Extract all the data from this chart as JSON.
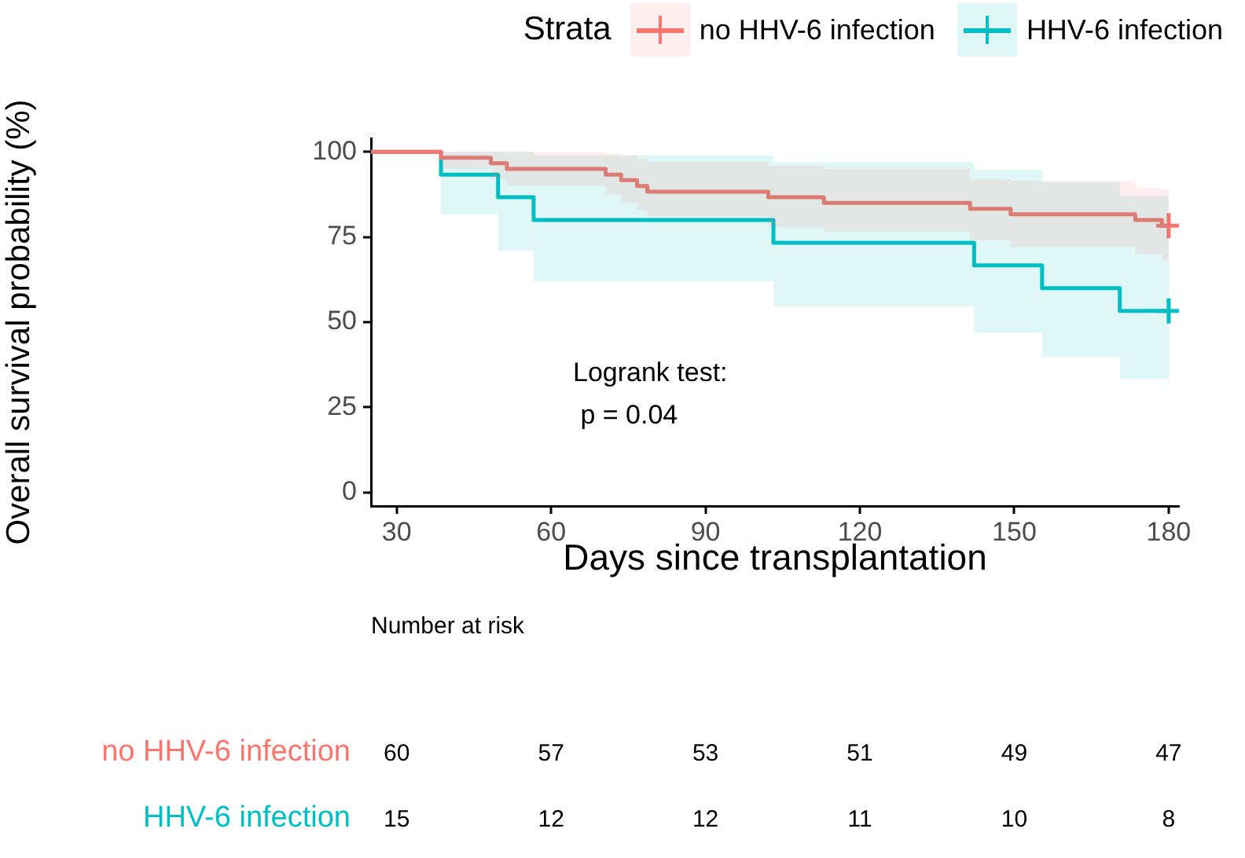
{
  "chart_data": [
    {
      "type": "step",
      "xlabel": "Days since transplantation",
      "ylabel": "Overall survival probability (%)",
      "legend_title": "Strata",
      "legend": "top",
      "xlim": [
        25,
        182
      ],
      "ylim": [
        -4,
        104
      ],
      "xticks": [
        30,
        60,
        90,
        120,
        150,
        180
      ],
      "yticks": [
        0,
        25,
        50,
        75,
        100
      ],
      "annotations": [
        "Logrank test:\n p = 0.04"
      ],
      "series": [
        {
          "name": "no HHV-6 infection",
          "color": "#f8766d",
          "x": [
            25,
            38.6,
            48.3,
            51.4,
            70.6,
            73.6,
            76.7,
            78.7,
            102.2,
            113,
            141.4,
            149.3,
            173.5,
            178.7,
            180
          ],
          "values": [
            100,
            98.3,
            96.7,
            95,
            93.3,
            91.7,
            90,
            88.3,
            86.7,
            85,
            83.3,
            81.7,
            80,
            78.3,
            78.3
          ],
          "lower": [
            100,
            95,
            92,
            90,
            87.5,
            85,
            83,
            81,
            78,
            76.5,
            74,
            72,
            70,
            68,
            68
          ],
          "upper": [
            100,
            100,
            100,
            100,
            99.5,
            99,
            98,
            97,
            96,
            95,
            92,
            91.5,
            89.5,
            89,
            89
          ]
        },
        {
          "name": "HHV-6 infection",
          "color": "#00bfc4",
          "x": [
            25,
            38.6,
            49.7,
            56.6,
            103.2,
            142.2,
            155.4,
            170.5,
            180
          ],
          "values": [
            100,
            93.3,
            86.7,
            80,
            73.3,
            66.7,
            60,
            53.3,
            53.3
          ],
          "lower": [
            100,
            81.6,
            71,
            62,
            54.5,
            46.8,
            39.8,
            33.4,
            33.4
          ],
          "upper": [
            100,
            100,
            100,
            99,
            97,
            94.8,
            91,
            87,
            87
          ]
        },
        {
          "type": "scatter",
          "color": "#f8766d",
          "marker": "cross",
          "x": [
            180
          ],
          "values": [
            78.3
          ]
        },
        {
          "type": "scatter",
          "color": "#00bfc4",
          "marker": "cross",
          "x": [
            180
          ],
          "values": [
            53.3
          ]
        }
      ]
    },
    {
      "type": "heatmap",
      "title": "Number at risk",
      "data_labels": true,
      "tick_labels": "y",
      "categories": [
        "30",
        "60",
        "90",
        "120",
        "150",
        "180"
      ],
      "y_categories": [
        "no HHV-6 infection",
        "HHV-6 infection"
      ],
      "cells": [
        [
          60,
          57,
          53,
          51,
          49,
          47
        ],
        [
          15,
          12,
          12,
          11,
          10,
          8
        ]
      ]
    }
  ]
}
